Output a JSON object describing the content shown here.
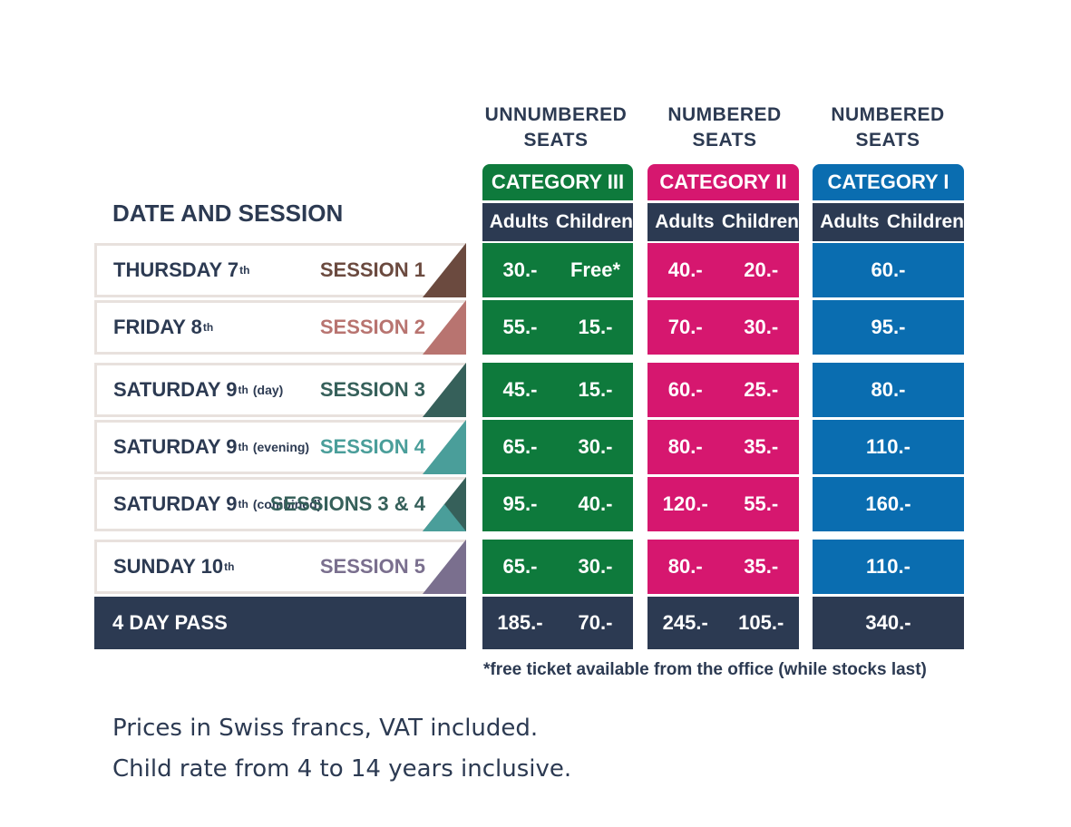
{
  "column_groups": [
    {
      "seats": "UNNUMBERED\nSEATS",
      "category": "CATEGORY III",
      "color": "#0e7a3c"
    },
    {
      "seats": "NUMBERED\nSEATS",
      "category": "CATEGORY II",
      "color": "#d6176f"
    },
    {
      "seats": "NUMBERED\nSEATS",
      "category": "CATEGORY I",
      "color": "#0a6db0"
    }
  ],
  "subheaders": {
    "adults": "Adults",
    "children": "Children"
  },
  "left_header": "DATE AND SESSION",
  "rows": [
    {
      "day": "THURSDAY 7",
      "sup": "th",
      "note": "",
      "session": "SESSION 1",
      "session_color": "#6b4a3f",
      "cat3_adults": "30.-",
      "cat3_children": "Free*",
      "cat2_adults": "40.-",
      "cat2_children": "20.-",
      "cat1": "60.-"
    },
    {
      "day": "FRIDAY 8",
      "sup": "th",
      "note": "",
      "session": "SESSION 2",
      "session_color": "#b87470",
      "cat3_adults": "55.-",
      "cat3_children": "15.-",
      "cat2_adults": "70.-",
      "cat2_children": "30.-",
      "cat1": "95.-"
    },
    {
      "day": "SATURDAY 9",
      "sup": "th",
      "note": "(day)",
      "session": "SESSION 3",
      "session_color": "#36605a",
      "cat3_adults": "45.-",
      "cat3_children": "15.-",
      "cat2_adults": "60.-",
      "cat2_children": "25.-",
      "cat1": "80.-"
    },
    {
      "day": "SATURDAY 9",
      "sup": "th",
      "note": "(evening)",
      "session": "SESSION 4",
      "session_color": "#4a9e9a",
      "cat3_adults": "65.-",
      "cat3_children": "30.-",
      "cat2_adults": "80.-",
      "cat2_children": "35.-",
      "cat1": "110.-"
    },
    {
      "day": "SATURDAY 9",
      "sup": "th",
      "note": "(combined)",
      "session": "SESSIONS 3 & 4",
      "session_color": "#36605a",
      "cat3_adults": "95.-",
      "cat3_children": "40.-",
      "cat2_adults": "120.-",
      "cat2_children": "55.-",
      "cat1": "160.-"
    },
    {
      "day": "SUNDAY 10",
      "sup": "th",
      "note": "",
      "session": "SESSION 5",
      "session_color": "#7a6f8e",
      "cat3_adults": "65.-",
      "cat3_children": "30.-",
      "cat2_adults": "80.-",
      "cat2_children": "35.-",
      "cat1": "110.-"
    }
  ],
  "pass": {
    "label": "4 DAY PASS",
    "cat3_adults": "185.-",
    "cat3_children": "70.-",
    "cat2_adults": "245.-",
    "cat2_children": "105.-",
    "cat1": "340.-"
  },
  "footnote": "*free ticket available from the office (while stocks last)",
  "notes": [
    "Prices in Swiss francs, VAT included.",
    "Child rate from 4 to 14 years inclusive."
  ]
}
